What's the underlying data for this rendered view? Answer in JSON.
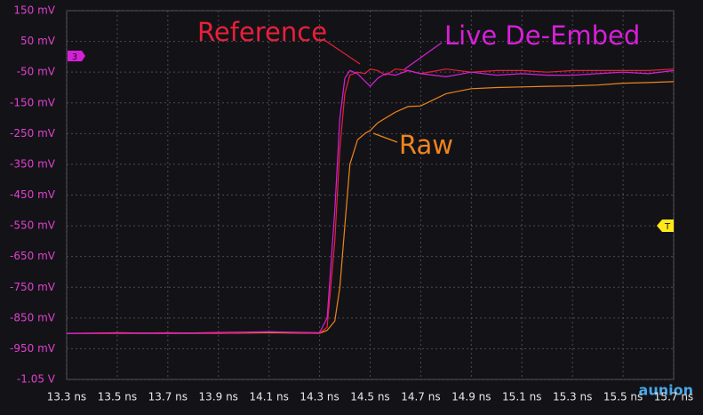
{
  "chart_data": {
    "type": "line",
    "x": [
      13.3,
      13.5,
      13.7,
      13.9,
      14.1,
      14.3,
      14.33,
      14.36,
      14.38,
      14.4,
      14.42,
      14.45,
      14.48,
      14.5,
      14.53,
      14.56,
      14.6,
      14.65,
      14.7,
      14.8,
      14.9,
      15.0,
      15.1,
      15.2,
      15.3,
      15.4,
      15.5,
      15.6,
      15.7
    ],
    "series": [
      {
        "name": "Reference",
        "color": "#e8203a",
        "values": [
          -900,
          -900,
          -898,
          -900,
          -895,
          -900,
          -880,
          -600,
          -300,
          -120,
          -60,
          -50,
          -55,
          -40,
          -45,
          -60,
          -40,
          -45,
          -55,
          -40,
          -50,
          -45,
          -45,
          -50,
          -45,
          -45,
          -45,
          -45,
          -40
        ]
      },
      {
        "name": "Live De-Embed",
        "color": "#d81fd8",
        "values": [
          -900,
          -898,
          -900,
          -897,
          -895,
          -898,
          -850,
          -500,
          -200,
          -70,
          -45,
          -55,
          -80,
          -96,
          -70,
          -55,
          -60,
          -45,
          -55,
          -65,
          -50,
          -60,
          -55,
          -60,
          -60,
          -55,
          -50,
          -55,
          -45
        ]
      },
      {
        "name": "Raw",
        "color": "#f0841e",
        "values": [
          -900,
          -900,
          -900,
          -900,
          -898,
          -900,
          -890,
          -860,
          -750,
          -550,
          -350,
          -270,
          -249,
          -240,
          -215,
          -200,
          -180,
          -162,
          -160,
          -120,
          -104,
          -100,
          -98,
          -96,
          -95,
          -92,
          -86,
          -84,
          -81
        ]
      }
    ],
    "xlim": [
      13.3,
      15.7
    ],
    "xticks": [
      {
        "value": 13.3,
        "label": "13.3 ns"
      },
      {
        "value": 13.5,
        "label": "13.5 ns"
      },
      {
        "value": 13.7,
        "label": "13.7 ns"
      },
      {
        "value": 13.9,
        "label": "13.9 ns"
      },
      {
        "value": 14.1,
        "label": "14.1 ns"
      },
      {
        "value": 14.3,
        "label": "14.3 ns"
      },
      {
        "value": 14.5,
        "label": "14.5 ns"
      },
      {
        "value": 14.7,
        "label": "14.7 ns"
      },
      {
        "value": 14.9,
        "label": "14.9 ns"
      },
      {
        "value": 15.1,
        "label": "15.1 ns"
      },
      {
        "value": 15.3,
        "label": "15.3 ns"
      },
      {
        "value": 15.5,
        "label": "15.5 ns"
      },
      {
        "value": 15.7,
        "label": "15.7 ns"
      }
    ],
    "ylim": [
      -1050,
      150
    ],
    "yticks": [
      {
        "value": 150,
        "label": "150 mV"
      },
      {
        "value": 50,
        "label": "50 mV"
      },
      {
        "value": -50,
        "label": "-50 mV"
      },
      {
        "value": -150,
        "label": "-150 mV"
      },
      {
        "value": -250,
        "label": "-250 mV"
      },
      {
        "value": -350,
        "label": "-350 mV"
      },
      {
        "value": -450,
        "label": "-450 mV"
      },
      {
        "value": -550,
        "label": "-550 mV"
      },
      {
        "value": -650,
        "label": "-650 mV"
      },
      {
        "value": -750,
        "label": "-750 mV"
      },
      {
        "value": -850,
        "label": "-850 mV"
      },
      {
        "value": -950,
        "label": "-950 mV"
      },
      {
        "value": -1050,
        "label": "-1.05 V"
      }
    ],
    "grid": true,
    "channel_marker": "3",
    "trigger_marker": "T",
    "logo": "aunion"
  }
}
